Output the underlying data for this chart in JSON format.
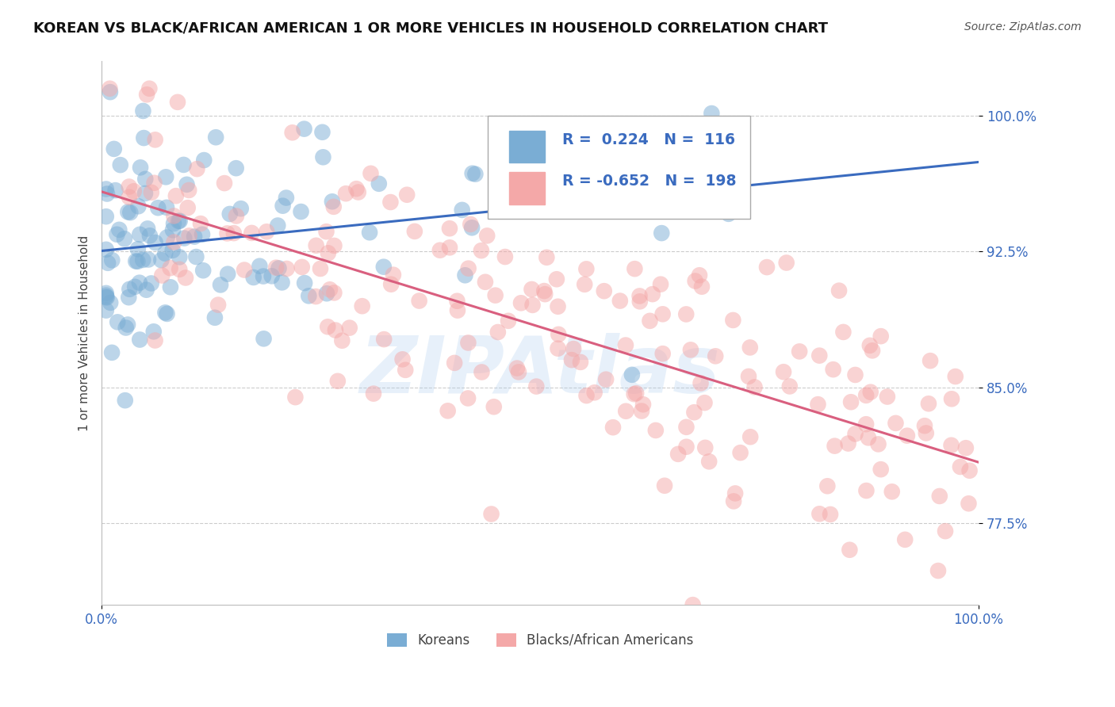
{
  "title": "KOREAN VS BLACK/AFRICAN AMERICAN 1 OR MORE VEHICLES IN HOUSEHOLD CORRELATION CHART",
  "source": "Source: ZipAtlas.com",
  "ylabel": "1 or more Vehicles in Household",
  "xlim": [
    0.0,
    100.0
  ],
  "ylim": [
    73.0,
    103.0
  ],
  "yticks": [
    77.5,
    85.0,
    92.5,
    100.0
  ],
  "ytick_labels": [
    "77.5%",
    "85.0%",
    "92.5%",
    "100.0%"
  ],
  "xtick_labels": [
    "0.0%",
    "100.0%"
  ],
  "legend_labels": [
    "Koreans",
    "Blacks/African Americans"
  ],
  "korean_R": 0.224,
  "korean_N": 116,
  "black_R": -0.652,
  "black_N": 198,
  "blue_color": "#7aadd4",
  "pink_color": "#f4a8a8",
  "blue_line_color": "#3a6bbf",
  "pink_line_color": "#d95f7f",
  "watermark": "ZIPAtlas",
  "background_color": "#FFFFFF",
  "grid_color": "#CCCCCC",
  "title_fontsize": 13,
  "legend_text_color": "#3a6bbf",
  "seed": 12
}
